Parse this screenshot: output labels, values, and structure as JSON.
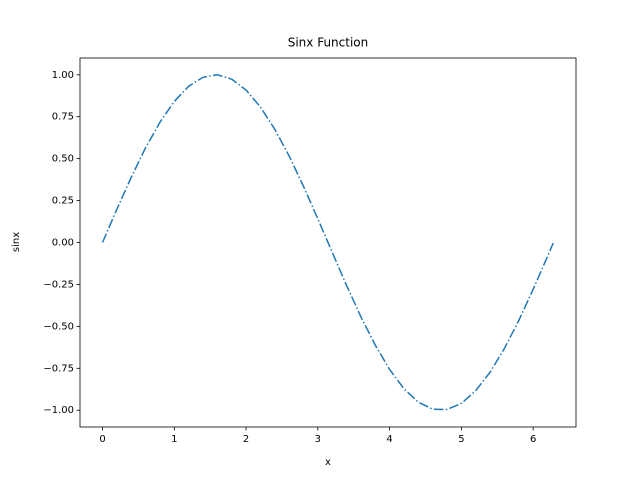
{
  "chart_data": {
    "type": "line",
    "title": "Sinx Function",
    "x_label": "x",
    "y_label": "sinx",
    "x": [
      0,
      0.2,
      0.4,
      0.6,
      0.8,
      1.0,
      1.2,
      1.4,
      1.6,
      1.8,
      2.0,
      2.2,
      2.4,
      2.6,
      2.8,
      3.0,
      3.2,
      3.4,
      3.6,
      3.8,
      4.0,
      4.2,
      4.4,
      4.6,
      4.8,
      5.0,
      5.2,
      5.4,
      5.6,
      5.8,
      6.0,
      6.2,
      6.28
    ],
    "series": [
      {
        "color": "#1f77b4",
        "line_style": "dashdot",
        "values": [
          0,
          0.199,
          0.389,
          0.565,
          0.717,
          0.841,
          0.932,
          0.985,
          1.0,
          0.974,
          0.909,
          0.808,
          0.675,
          0.516,
          0.335,
          0.141,
          -0.058,
          -0.256,
          -0.443,
          -0.612,
          -0.757,
          -0.872,
          -0.952,
          -0.994,
          -0.996,
          -0.959,
          -0.883,
          -0.773,
          -0.631,
          -0.465,
          -0.279,
          -0.083,
          -0.003
        ]
      }
    ],
    "xlim": [
      -0.314,
      6.597
    ],
    "xticks": [
      0,
      1,
      2,
      3,
      4,
      5,
      6
    ],
    "ylim": [
      -1.1,
      1.1
    ],
    "yticks": [
      {
        "value": -1,
        "label": "−1.00"
      },
      {
        "value": -0.75,
        "label": "−0.75"
      },
      {
        "value": -0.5,
        "label": "−0.50"
      },
      {
        "value": -0.25,
        "label": "−0.25"
      },
      {
        "value": 0,
        "label": "0.00"
      },
      {
        "value": 0.25,
        "label": "0.25"
      },
      {
        "value": 0.5,
        "label": "0.50"
      },
      {
        "value": 0.75,
        "label": "0.75"
      },
      {
        "value": 1,
        "label": "1.00"
      }
    ]
  }
}
